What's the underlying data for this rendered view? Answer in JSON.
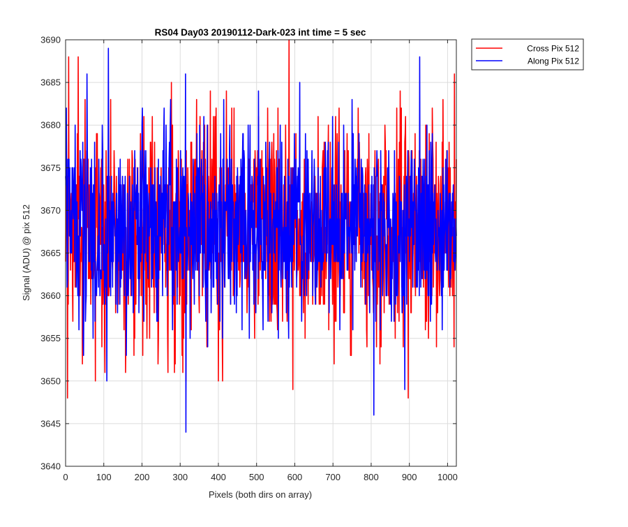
{
  "chart_data": {
    "type": "line",
    "title": "RS04 Day03 20190112-Dark-023 int time = 5 sec",
    "xlabel": "Pixels (both dirs on array)",
    "ylabel": "Signal (ADU) @ pix 512",
    "xlim": [
      0,
      1023
    ],
    "ylim": [
      3640,
      3690
    ],
    "xticks": [
      0,
      100,
      200,
      300,
      400,
      500,
      600,
      700,
      800,
      900,
      1000
    ],
    "xtick_labels": [
      "0",
      "100",
      "200",
      "300",
      "400",
      "500",
      "600",
      "700",
      "800",
      "900",
      "1000"
    ],
    "yticks": [
      3640,
      3645,
      3650,
      3655,
      3660,
      3665,
      3670,
      3675,
      3680,
      3685,
      3690
    ],
    "ytick_labels": [
      "3640",
      "3645",
      "3650",
      "3655",
      "3660",
      "3665",
      "3670",
      "3675",
      "3680",
      "3685",
      "3690"
    ],
    "grid": true,
    "legend_location": "outside-top-right",
    "series": [
      {
        "name": "Cross Pix 512",
        "color": "#ff0000",
        "mean": 3668,
        "std": 6.3,
        "n_points": 1024,
        "extremes": [
          {
            "x": 5,
            "y": 3648
          },
          {
            "x": 8,
            "y": 3688
          },
          {
            "x": 33,
            "y": 3688
          },
          {
            "x": 44,
            "y": 3652
          },
          {
            "x": 78,
            "y": 3650
          },
          {
            "x": 268,
            "y": 3651
          },
          {
            "x": 400,
            "y": 3650
          },
          {
            "x": 585,
            "y": 3690
          },
          {
            "x": 595,
            "y": 3649
          },
          {
            "x": 897,
            "y": 3648
          },
          {
            "x": 1018,
            "y": 3686
          }
        ]
      },
      {
        "name": "Along Pix 512",
        "color": "#0000ff",
        "mean": 3668,
        "std": 5.8,
        "n_points": 1024,
        "extremes": [
          {
            "x": 2,
            "y": 3682
          },
          {
            "x": 108,
            "y": 3650
          },
          {
            "x": 112,
            "y": 3689
          },
          {
            "x": 315,
            "y": 3644
          },
          {
            "x": 807,
            "y": 3646
          },
          {
            "x": 888,
            "y": 3649
          },
          {
            "x": 927,
            "y": 3688
          }
        ]
      }
    ]
  }
}
